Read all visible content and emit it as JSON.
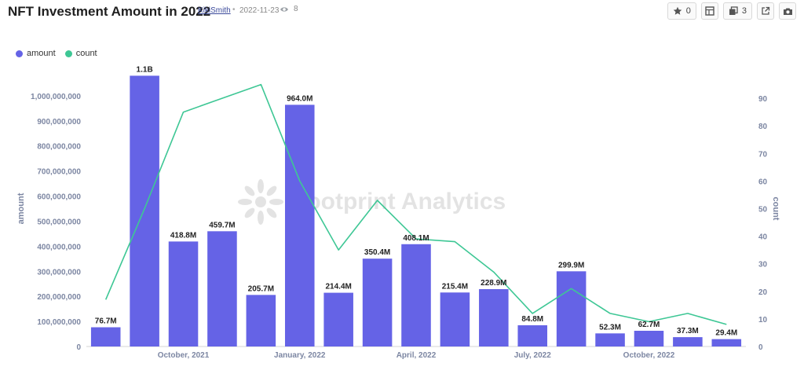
{
  "header": {
    "title": "NFT Investment Amount in 2022",
    "author": "KikiSmith",
    "separator": "•",
    "date": "2022-11-23",
    "views": "8"
  },
  "toolbar": {
    "star_count": "0",
    "copy_count": "3",
    "icons": [
      "star-icon",
      "dashboard-icon",
      "copy-icon",
      "external-link-icon",
      "camera-icon"
    ]
  },
  "watermark": "Footprint Analytics",
  "legend": [
    {
      "label": "amount",
      "color": "#6563e6"
    },
    {
      "label": "count",
      "color": "#3ec795"
    }
  ],
  "chart_data": {
    "type": "bar+line",
    "bar_labels": [
      "76.7M",
      "1.1B",
      "418.8M",
      "459.7M",
      "205.7M",
      "964.0M",
      "214.4M",
      "350.4M",
      "408.1M",
      "215.4M",
      "228.9M",
      "84.8M",
      "299.9M",
      "52.3M",
      "62.7M",
      "37.3M",
      "29.4M"
    ],
    "x_tick_labels": [
      {
        "label": "October, 2021",
        "index": 2
      },
      {
        "label": "January, 2022",
        "index": 5
      },
      {
        "label": "April, 2022",
        "index": 8
      },
      {
        "label": "July, 2022",
        "index": 11
      },
      {
        "label": "October, 2022",
        "index": 14
      }
    ],
    "series": [
      {
        "name": "amount",
        "type": "bar",
        "axis": "left",
        "color": "#6563e6",
        "values": [
          76700000,
          1080000000,
          418800000,
          459700000,
          205700000,
          964000000,
          214400000,
          350400000,
          408100000,
          215400000,
          228900000,
          84800000,
          299900000,
          52300000,
          62700000,
          37300000,
          29400000
        ]
      },
      {
        "name": "count",
        "type": "line",
        "axis": "right",
        "color": "#3ec795",
        "values": [
          17,
          50,
          85,
          90,
          95,
          60,
          35,
          53,
          39,
          38,
          27,
          12,
          21,
          12,
          9,
          12,
          8
        ]
      }
    ],
    "y_left": {
      "label": "amount",
      "range": [
        0,
        1100000000
      ],
      "ticks": [
        0,
        100000000,
        200000000,
        300000000,
        400000000,
        500000000,
        600000000,
        700000000,
        800000000,
        900000000,
        1000000000
      ],
      "tick_labels": [
        "0",
        "100,000,000",
        "200,000,000",
        "300,000,000",
        "400,000,000",
        "500,000,000",
        "600,000,000",
        "700,000,000",
        "800,000,000",
        "900,000,000",
        "1,000,000,000"
      ]
    },
    "y_right": {
      "label": "count",
      "range": [
        0,
        100
      ],
      "ticks": [
        0,
        10,
        20,
        30,
        40,
        50,
        60,
        70,
        80,
        90
      ],
      "tick_labels": [
        "0",
        "10",
        "20",
        "30",
        "40",
        "50",
        "60",
        "70",
        "80",
        "90"
      ]
    },
    "grid": false,
    "legend_position": "top-left"
  }
}
